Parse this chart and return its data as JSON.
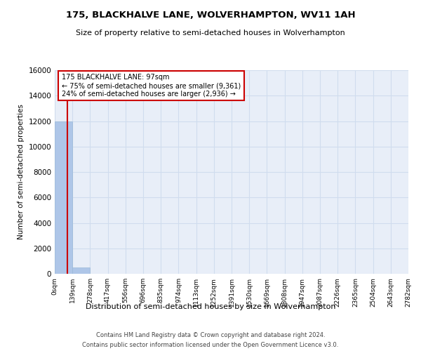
{
  "title": "175, BLACKHALVE LANE, WOLVERHAMPTON, WV11 1AH",
  "subtitle": "Size of property relative to semi-detached houses in Wolverhampton",
  "xlabel": "Distribution of semi-detached houses by size in Wolverhampton",
  "ylabel": "Number of semi-detached properties",
  "footnote1": "Contains HM Land Registry data © Crown copyright and database right 2024.",
  "footnote2": "Contains public sector information licensed under the Open Government Licence v3.0.",
  "bar_edges": [
    0,
    139,
    278,
    417,
    556,
    696,
    835,
    974,
    1113,
    1252,
    1391,
    1530,
    1669,
    1808,
    1947,
    2087,
    2226,
    2365,
    2504,
    2643,
    2782
  ],
  "bar_heights": [
    12000,
    500,
    0,
    0,
    0,
    0,
    0,
    0,
    0,
    0,
    0,
    0,
    0,
    0,
    0,
    0,
    0,
    0,
    0,
    0
  ],
  "bar_color": "#aec6e8",
  "bar_edge_color": "#9ab8d8",
  "grid_color": "#d0dcee",
  "background_color": "#e8eef8",
  "property_size": 97,
  "red_line_color": "#cc0000",
  "annotation_title": "175 BLACKHALVE LANE: 97sqm",
  "annotation_line1": "← 75% of semi-detached houses are smaller (9,361)",
  "annotation_line2": "24% of semi-detached houses are larger (2,936) →",
  "annotation_box_color": "#ffffff",
  "annotation_border_color": "#cc0000",
  "ylim": [
    0,
    16000
  ],
  "yticks": [
    0,
    2000,
    4000,
    6000,
    8000,
    10000,
    12000,
    14000,
    16000
  ],
  "xtick_labels": [
    "0sqm",
    "139sqm",
    "278sqm",
    "417sqm",
    "556sqm",
    "696sqm",
    "835sqm",
    "974sqm",
    "1113sqm",
    "1252sqm",
    "1391sqm",
    "1530sqm",
    "1669sqm",
    "1808sqm",
    "1947sqm",
    "2087sqm",
    "2226sqm",
    "2365sqm",
    "2504sqm",
    "2643sqm",
    "2782sqm"
  ]
}
